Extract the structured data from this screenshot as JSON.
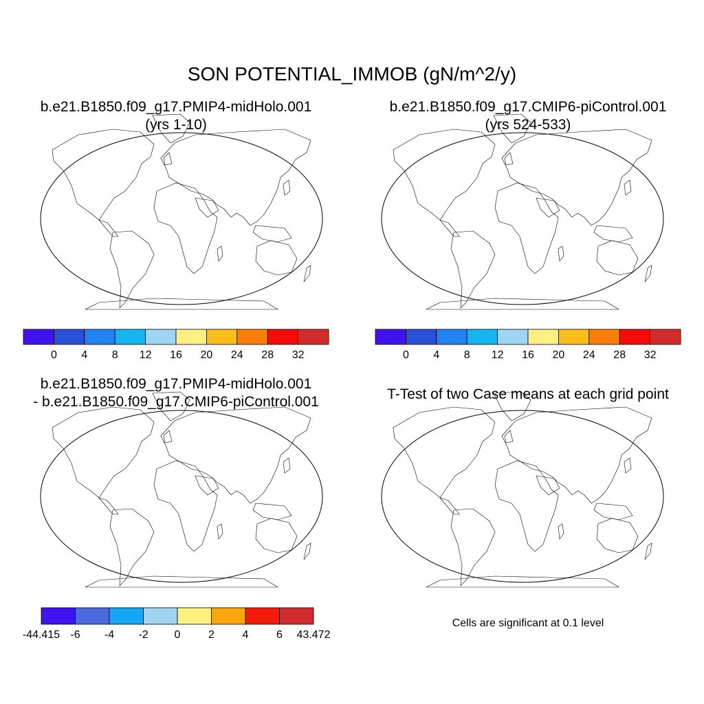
{
  "main_title": "SON POTENTIAL_IMMOB (gN/m^2/y)",
  "panels": [
    {
      "title_line1": "b.e21.B1850.f09_g17.PMIP4-midHolo.001",
      "title_line2": "(yrs 1-10)",
      "field": "absolute",
      "colorbar_id": "abs"
    },
    {
      "title_line1": "b.e21.B1850.f09_g17.CMIP6-piControl.001",
      "title_line2": "(yrs 524-533)",
      "field": "absolute",
      "colorbar_id": "abs"
    },
    {
      "title_line1": "b.e21.B1850.f09_g17.PMIP4-midHolo.001",
      "title_line2": "- b.e21.B1850.f09_g17.CMIP6-piControl.001",
      "field": "difference",
      "colorbar_id": "diff"
    },
    {
      "title_line1": "T-Test of two Case means at each grid point",
      "note": "Cells are significant at 0.1 level",
      "field": "significance",
      "significant_color": "#ff0000"
    }
  ],
  "colorbars": {
    "abs": {
      "colors": [
        "#3d14f0",
        "#2a4fd8",
        "#2183f1",
        "#16b5f2",
        "#9fd5f0",
        "#fff080",
        "#fbbd19",
        "#fb7c07",
        "#f50a0a",
        "#d22b2b"
      ],
      "labels": [
        "0",
        "4",
        "8",
        "12",
        "16",
        "20",
        "24",
        "28",
        "32"
      ]
    },
    "diff": {
      "colors": [
        "#3d14f0",
        "#4b6bdf",
        "#13a7f5",
        "#9fd5f0",
        "#fff080",
        "#fba60a",
        "#f51a0a",
        "#d22b2b"
      ],
      "labels": [
        "-44.415",
        "-6",
        "-4",
        "-2",
        "0",
        "2",
        "4",
        "6",
        "43.472"
      ]
    }
  }
}
